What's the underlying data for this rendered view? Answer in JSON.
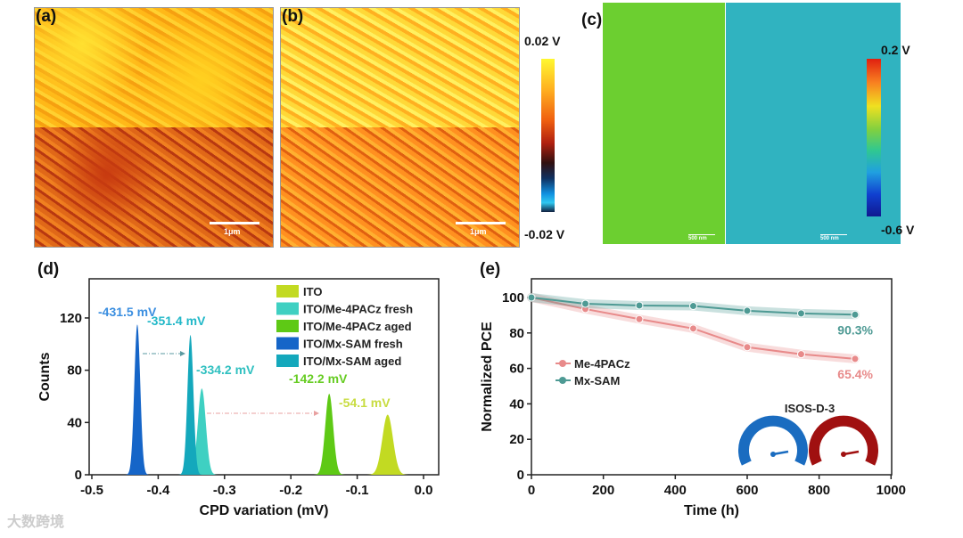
{
  "panels": {
    "a": "(a)",
    "b": "(b)",
    "c": "(c)",
    "d": "(d)",
    "e": "(e)"
  },
  "afm": {
    "scale_a": "1μm",
    "scale_b": "1μm",
    "scale_c1": "500 nm",
    "scale_c2": "500 nm"
  },
  "colorbar1": {
    "max": "0.02 V",
    "min": "-0.02 V"
  },
  "colorbar2": {
    "max": "0.2 V",
    "min": "-0.6 V"
  },
  "watermark": "大数跨境",
  "chart_data": [
    {
      "type": "area",
      "title": "",
      "xlabel": "CPD variation (mV)",
      "ylabel": "Counts",
      "xlim": [
        -0.5,
        0.0
      ],
      "ylim": [
        0,
        150
      ],
      "xticks": [
        "-0.5",
        "-0.4",
        "-0.3",
        "-0.2",
        "-0.1",
        "0.0"
      ],
      "yticks": [
        "0",
        "40",
        "80",
        "120"
      ],
      "legend_position": "top-right",
      "series": [
        {
          "name": "ITO",
          "peak_x": -0.0541,
          "peak_count": 46,
          "label": "-54.1 mV",
          "color": "#c2da22",
          "width": 0.008
        },
        {
          "name": "ITO/Me-4PACz fresh",
          "peak_x": -0.3342,
          "peak_count": 66,
          "label": "-334.2 mV",
          "color": "#3fd0c2",
          "width": 0.006
        },
        {
          "name": "ITO/Me-4PACz aged",
          "peak_x": -0.1422,
          "peak_count": 62,
          "label": "-142.2 mV",
          "color": "#5ec915",
          "width": 0.006
        },
        {
          "name": "ITO/Mx-SAM fresh",
          "peak_x": -0.4315,
          "peak_count": 115,
          "label": "-431.5 mV",
          "color": "#1565c8",
          "width": 0.0045
        },
        {
          "name": "ITO/Mx-SAM aged",
          "peak_x": -0.3514,
          "peak_count": 107,
          "label": "-351.4 mV",
          "color": "#14a8bc",
          "width": 0.0045
        }
      ],
      "label_colors": {
        "-431.5 mV": "#3a8ee0",
        "-351.4 mV": "#22b8c8",
        "-334.2 mV": "#30c0c0",
        "-142.2 mV": "#66cc22",
        "-54.1 mV": "#c8dc40"
      }
    },
    {
      "type": "line",
      "title": "",
      "xlabel": "Time (h)",
      "ylabel": "Normalized PCE",
      "xlim": [
        0,
        1000
      ],
      "ylim": [
        0,
        110
      ],
      "xticks": [
        "0",
        "200",
        "400",
        "600",
        "800",
        "1000"
      ],
      "yticks": [
        "0",
        "20",
        "40",
        "60",
        "80",
        "100"
      ],
      "legend_position": "middle-left",
      "x": [
        0,
        150,
        300,
        450,
        600,
        750,
        900
      ],
      "series": [
        {
          "name": "Me-4PACz",
          "values": [
            100,
            93.5,
            87.8,
            82.5,
            72,
            68,
            65.4
          ],
          "color": "#e88a8a",
          "end_label": "65.4%"
        },
        {
          "name": "Mx-SAM",
          "values": [
            100,
            96.5,
            95.5,
            95.2,
            92.5,
            91,
            90.3
          ],
          "color": "#4e9a94",
          "end_label": "90.3%"
        }
      ],
      "annotation": "ISOS-D-3",
      "gauge_colors": [
        "#1a6cc0",
        "#a01010"
      ]
    }
  ]
}
